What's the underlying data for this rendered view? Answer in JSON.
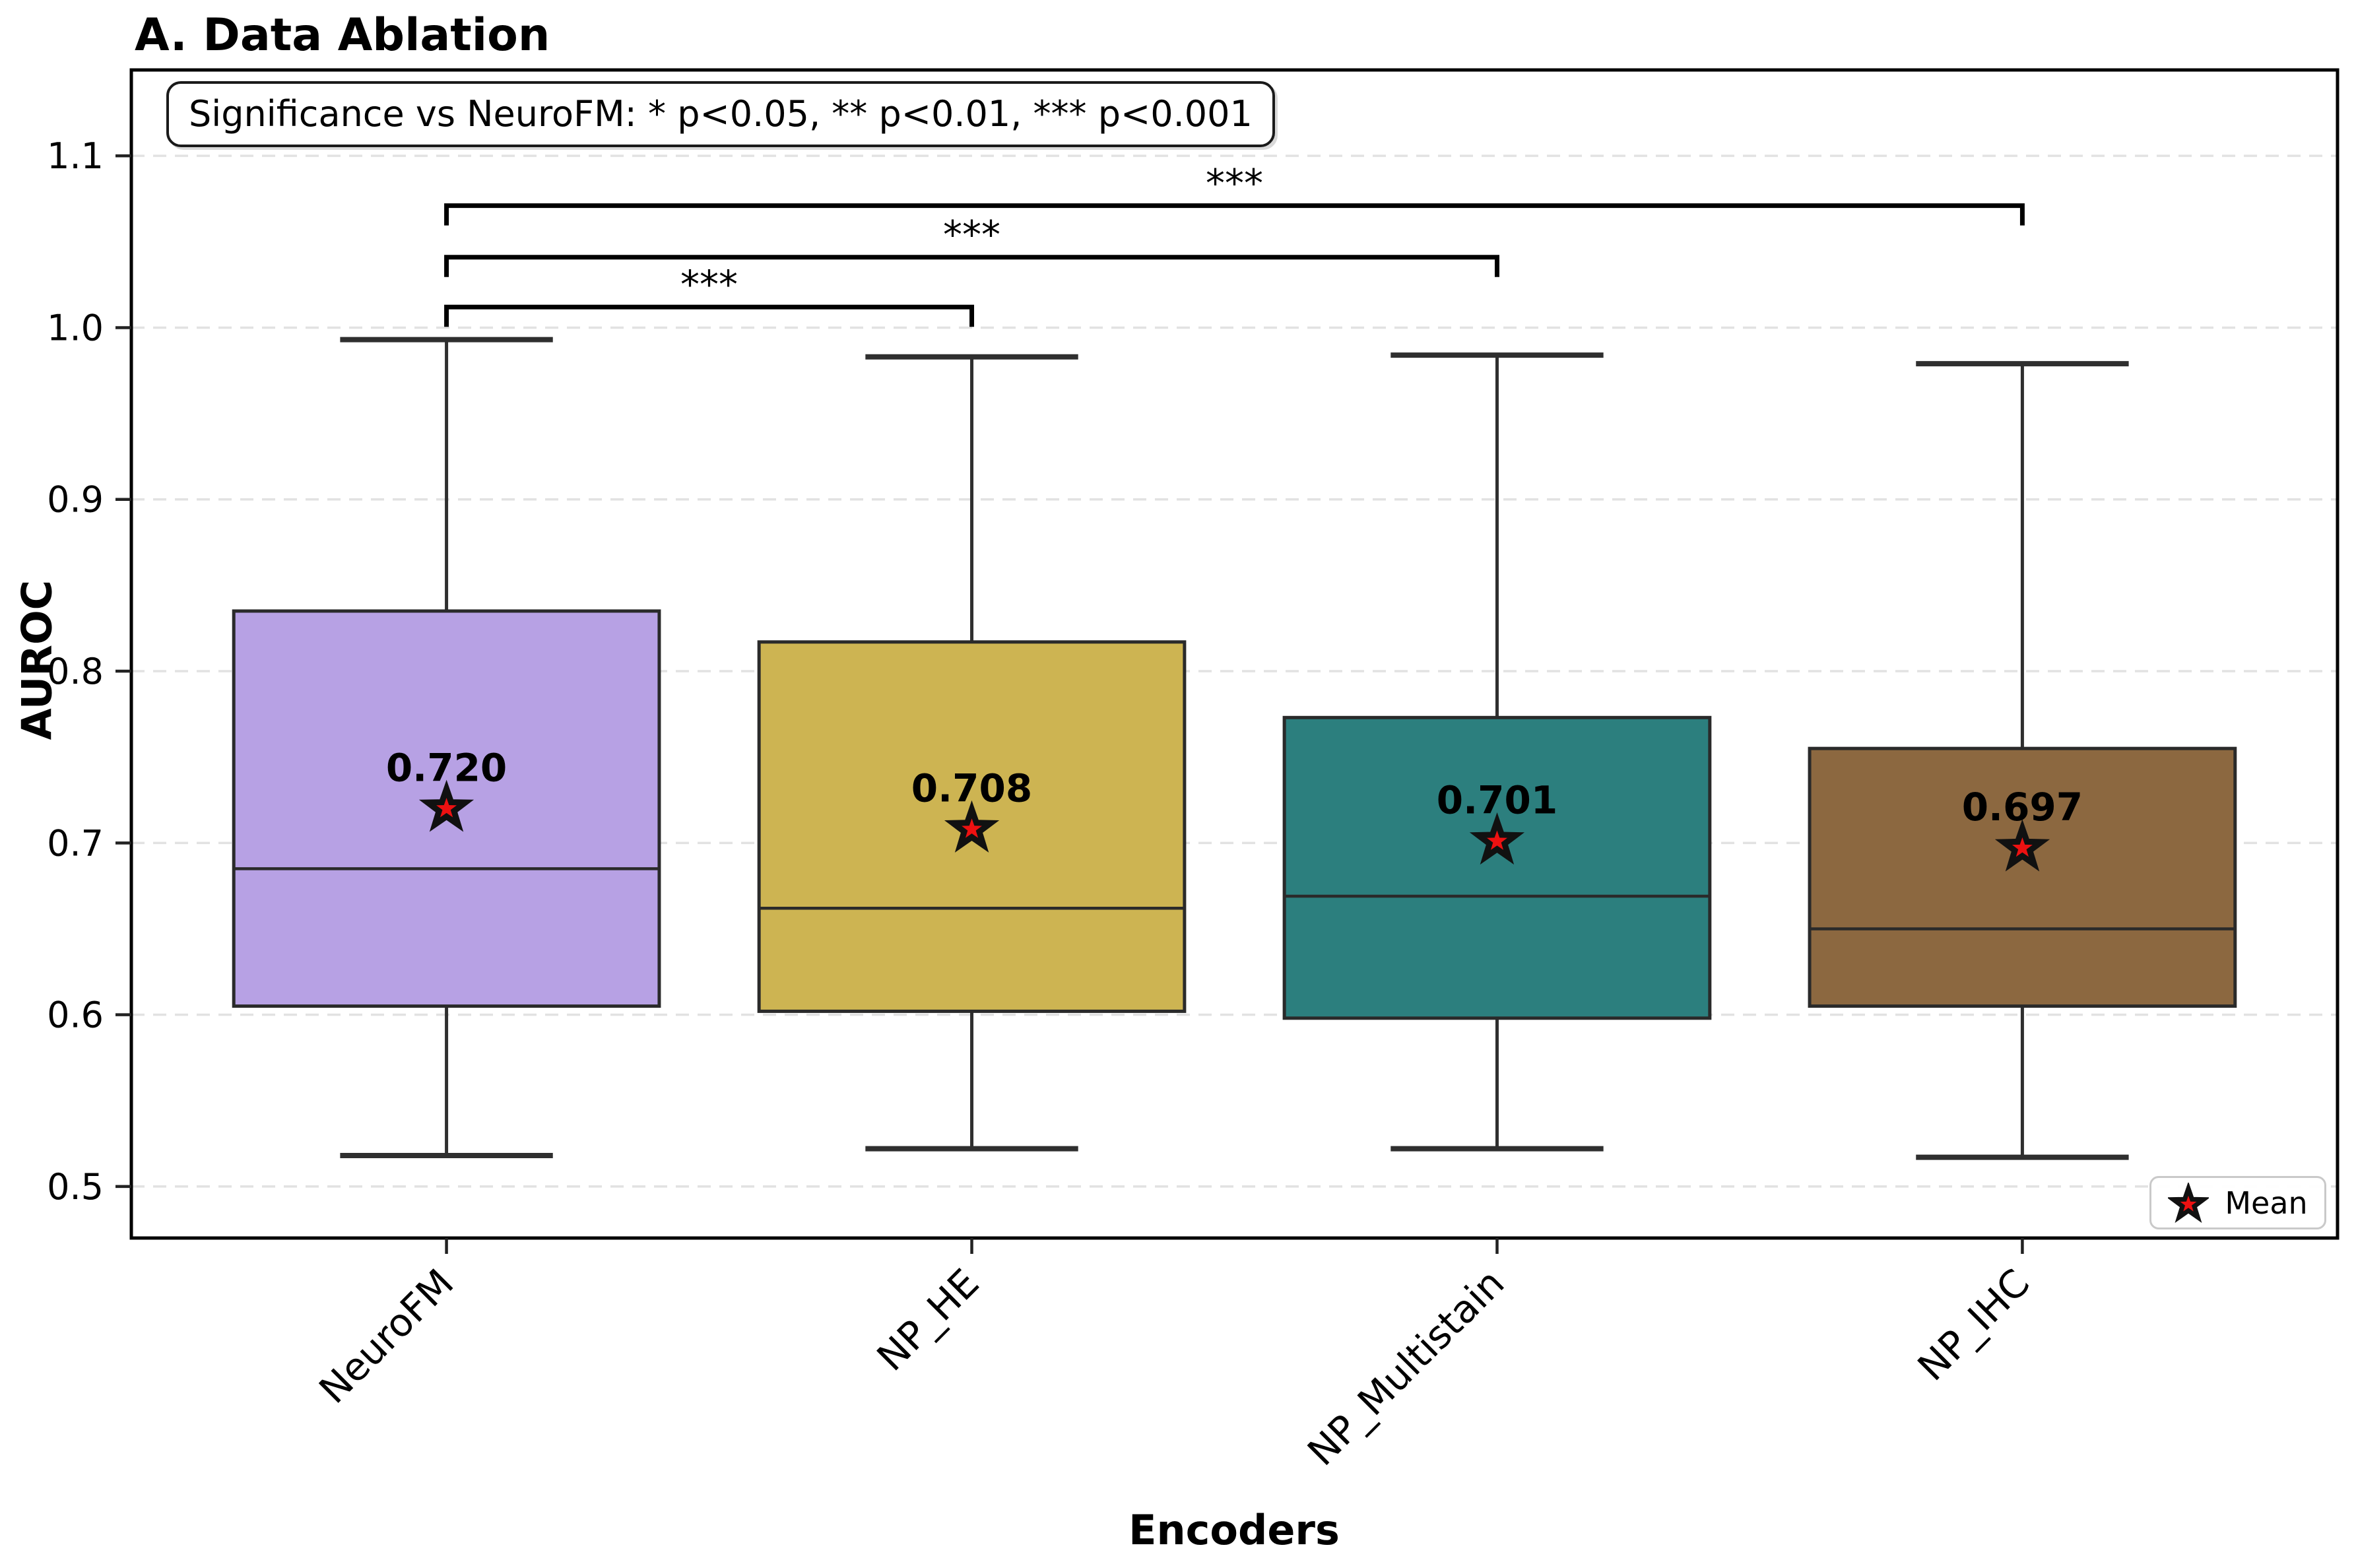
{
  "figure": {
    "title": "A. Data Ablation"
  },
  "axes": {
    "ylabel": "AUROC",
    "xlabel": "Encoders",
    "yticks": [
      1.1,
      1.0,
      0.9,
      0.8,
      0.7,
      0.6,
      0.5
    ],
    "ylim": [
      0.47,
      1.15
    ]
  },
  "annotation": {
    "text": "Significance vs NeuroFM: * p<0.05, ** p<0.01, *** p<0.001"
  },
  "legend": {
    "label": "Mean",
    "marker": "star-icon"
  },
  "colors": {
    "box_edge": "#2a2a2a",
    "whisker": "#2f2f2f",
    "gridline": "#e2e2e2",
    "star_fill": "#ee1111",
    "star_edge": "#111111",
    "bracket": "#000000",
    "spine": "#000000"
  },
  "chart_data": {
    "type": "box",
    "title": "A. Data Ablation",
    "xlabel": "Encoders",
    "ylabel": "AUROC",
    "ylim": [
      0.47,
      1.15
    ],
    "xlim": [
      0.4,
      4.6
    ],
    "box_width": 0.81,
    "grid": "horizontal-dashed",
    "legend_position": "lower-right",
    "yticks": [
      1.1,
      1.0,
      0.9,
      0.8,
      0.7,
      0.6,
      0.5
    ],
    "categories": [
      "NeuroFM",
      "NP_HE",
      "NP_Multistain",
      "NP_IHC"
    ],
    "boxes": [
      {
        "name": "NeuroFM",
        "whisker_low": 0.518,
        "q1": 0.605,
        "median": 0.685,
        "q3": 0.835,
        "whisker_high": 0.993,
        "mean": 0.72,
        "mean_label": "0.720",
        "color": "#b7a1e4"
      },
      {
        "name": "NP_HE",
        "whisker_low": 0.522,
        "q1": 0.602,
        "median": 0.662,
        "q3": 0.817,
        "whisker_high": 0.983,
        "mean": 0.708,
        "mean_label": "0.708",
        "color": "#cdb452"
      },
      {
        "name": "NP_Multistain",
        "whisker_low": 0.522,
        "q1": 0.598,
        "median": 0.669,
        "q3": 0.773,
        "whisker_high": 0.984,
        "mean": 0.701,
        "mean_label": "0.701",
        "color": "#2c7f7e"
      },
      {
        "name": "NP_IHC",
        "whisker_low": 0.517,
        "q1": 0.605,
        "median": 0.65,
        "q3": 0.755,
        "whisker_high": 0.979,
        "mean": 0.697,
        "mean_label": "0.697",
        "color": "#8c6840"
      }
    ],
    "significance_brackets": [
      {
        "from": "NeuroFM",
        "to": "NP_HE",
        "label": "***",
        "y": 1.012
      },
      {
        "from": "NeuroFM",
        "to": "NP_Multistain",
        "label": "***",
        "y": 1.041
      },
      {
        "from": "NeuroFM",
        "to": "NP_IHC",
        "label": "***",
        "y": 1.071
      }
    ]
  }
}
